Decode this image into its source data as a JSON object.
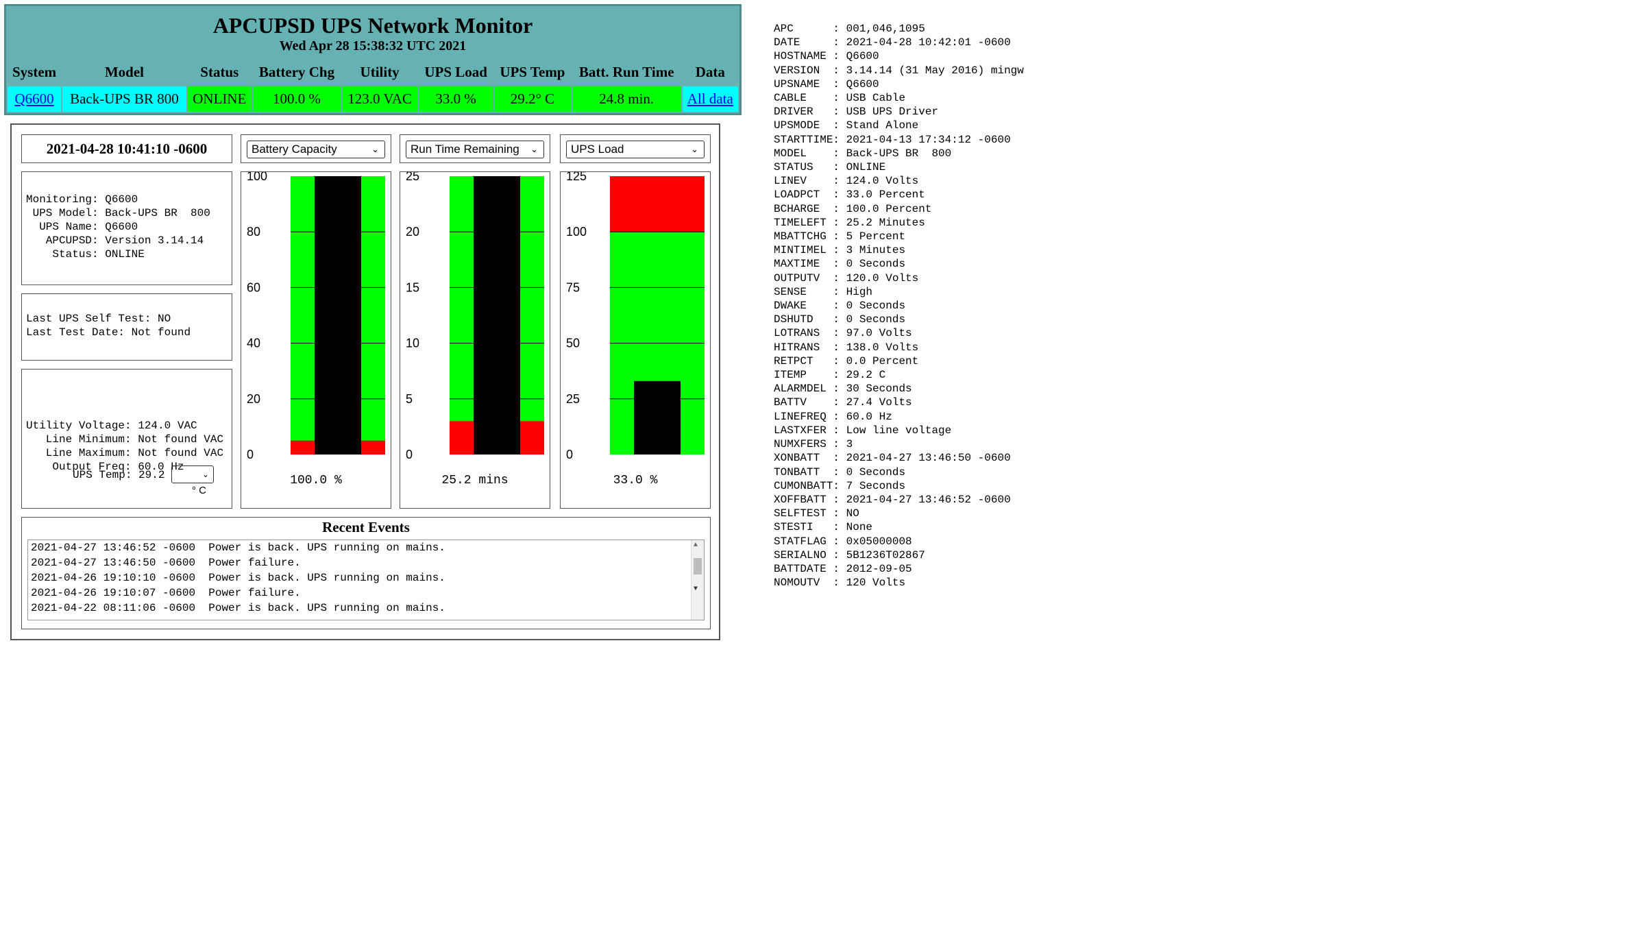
{
  "header": {
    "title": "APCUPSD UPS Network Monitor",
    "subtitle": "Wed Apr 28 15:38:32 UTC 2021",
    "columns": [
      "System",
      "Model",
      "Status",
      "Battery Chg",
      "Utility",
      "UPS Load",
      "UPS Temp",
      "Batt. Run Time",
      "Data"
    ],
    "row": {
      "system": "Q6600",
      "model": "Back-UPS BR 800",
      "status": "ONLINE",
      "battery_chg": "100.0 %",
      "utility": "123.0 VAC",
      "ups_load": "33.0 %",
      "ups_temp": "29.2° C",
      "batt_run_time": "24.8 min.",
      "data_link": "All data"
    },
    "colors": {
      "header_bg": "#66b2b2",
      "ok": "#00ff00",
      "system_cell": "#00ffff"
    }
  },
  "panel": {
    "datetime": "2021-04-28 10:41:10 -0600",
    "selects": [
      "Battery Capacity",
      "Run Time Remaining",
      "UPS Load"
    ],
    "info1": "Monitoring: Q6600\n UPS Model: Back-UPS BR  800\n  UPS Name: Q6600\n   APCUPSD: Version 3.14.14\n    Status: ONLINE",
    "info2": "Last UPS Self Test: NO\nLast Test Date: Not found",
    "info3": "Utility Voltage: 124.0 VAC\n   Line Minimum: Not found VAC\n   Line Maximum: Not found VAC\n    Output Freq: 60.0 Hz",
    "ups_temp_label": "UPS Temp: 29.2",
    "temp_unit": "° C",
    "gauges": [
      {
        "value": 100.0,
        "max": 100,
        "red_below": 5,
        "red_above": null,
        "ticks": [
          0,
          20,
          40,
          60,
          80,
          100
        ],
        "readout": "100.0 %"
      },
      {
        "value": 25.2,
        "max": 25,
        "red_below": 3,
        "red_above": null,
        "ticks": [
          0,
          5,
          10,
          15,
          20,
          25
        ],
        "readout": "25.2 mins"
      },
      {
        "value": 33.0,
        "max": 125,
        "red_below": null,
        "red_above": 100,
        "ticks": [
          0,
          25,
          50,
          75,
          100,
          125
        ],
        "readout": "33.0 %"
      }
    ],
    "gauge_colors": {
      "ok": "#00ff00",
      "alarm": "#ff0000",
      "bar": "#000000"
    },
    "events_title": "Recent Events",
    "events": [
      "2021-04-27 13:46:52 -0600  Power is back. UPS running on mains.",
      "2021-04-27 13:46:50 -0600  Power failure.",
      "2021-04-26 19:10:10 -0600  Power is back. UPS running on mains.",
      "2021-04-26 19:10:07 -0600  Power failure.",
      "2021-04-22 08:11:06 -0600  Power is back. UPS running on mains."
    ]
  },
  "raw_status": [
    [
      "APC",
      "001,046,1095"
    ],
    [
      "DATE",
      "2021-04-28 10:42:01 -0600"
    ],
    [
      "HOSTNAME",
      "Q6600"
    ],
    [
      "VERSION",
      "3.14.14 (31 May 2016) mingw"
    ],
    [
      "UPSNAME",
      "Q6600"
    ],
    [
      "CABLE",
      "USB Cable"
    ],
    [
      "DRIVER",
      "USB UPS Driver"
    ],
    [
      "UPSMODE",
      "Stand Alone"
    ],
    [
      "STARTTIME",
      "2021-04-13 17:34:12 -0600"
    ],
    [
      "MODEL",
      "Back-UPS BR  800"
    ],
    [
      "STATUS",
      "ONLINE"
    ],
    [
      "LINEV",
      "124.0 Volts"
    ],
    [
      "LOADPCT",
      "33.0 Percent"
    ],
    [
      "BCHARGE",
      "100.0 Percent"
    ],
    [
      "TIMELEFT",
      "25.2 Minutes"
    ],
    [
      "MBATTCHG",
      "5 Percent"
    ],
    [
      "MINTIMEL",
      "3 Minutes"
    ],
    [
      "MAXTIME",
      "0 Seconds"
    ],
    [
      "OUTPUTV",
      "120.0 Volts"
    ],
    [
      "SENSE",
      "High"
    ],
    [
      "DWAKE",
      "0 Seconds"
    ],
    [
      "DSHUTD",
      "0 Seconds"
    ],
    [
      "LOTRANS",
      "97.0 Volts"
    ],
    [
      "HITRANS",
      "138.0 Volts"
    ],
    [
      "RETPCT",
      "0.0 Percent"
    ],
    [
      "ITEMP",
      "29.2 C"
    ],
    [
      "ALARMDEL",
      "30 Seconds"
    ],
    [
      "BATTV",
      "27.4 Volts"
    ],
    [
      "LINEFREQ",
      "60.0 Hz"
    ],
    [
      "LASTXFER",
      "Low line voltage"
    ],
    [
      "NUMXFERS",
      "3"
    ],
    [
      "XONBATT",
      "2021-04-27 13:46:50 -0600"
    ],
    [
      "TONBATT",
      "0 Seconds"
    ],
    [
      "CUMONBATT",
      "7 Seconds"
    ],
    [
      "XOFFBATT",
      "2021-04-27 13:46:52 -0600"
    ],
    [
      "SELFTEST",
      "NO"
    ],
    [
      "STESTI",
      "None"
    ],
    [
      "STATFLAG",
      "0x05000008"
    ],
    [
      "SERIALNO",
      "5B1236T02867"
    ],
    [
      "BATTDATE",
      "2012-09-05"
    ],
    [
      "NOMOUTV",
      "120 Volts"
    ]
  ]
}
